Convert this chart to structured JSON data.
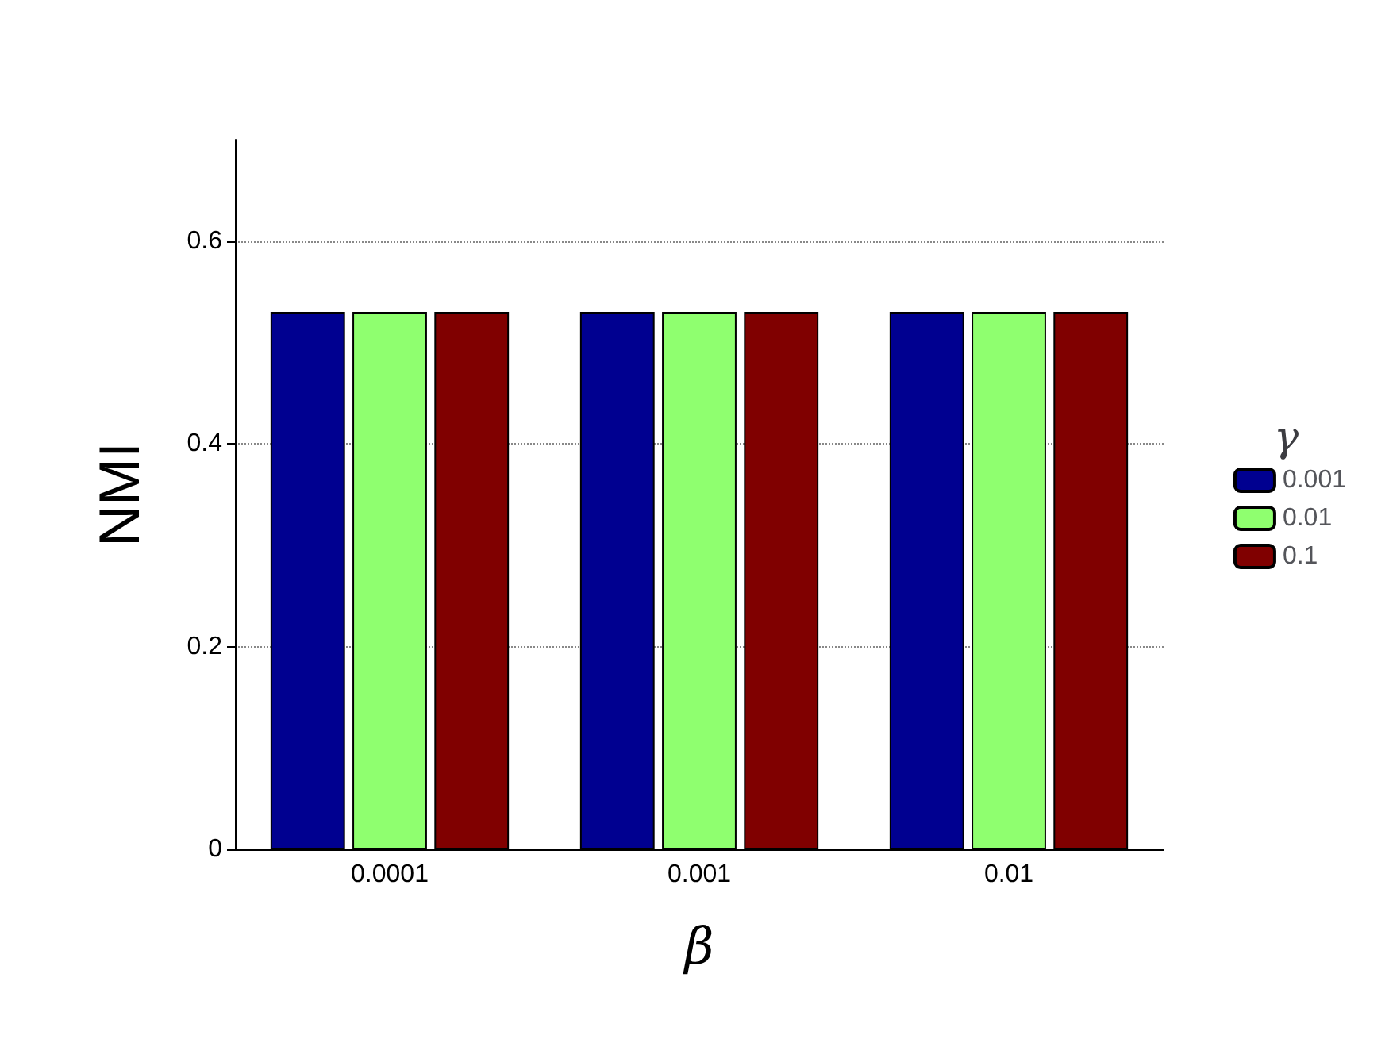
{
  "chart_data": {
    "type": "bar",
    "xlabel": "β",
    "ylabel": "NMI",
    "legend_title": "γ",
    "categories": [
      "0.0001",
      "0.001",
      "0.01"
    ],
    "series": [
      {
        "name": "0.001",
        "color": "#000090",
        "values": [
          0.53,
          0.53,
          0.53
        ]
      },
      {
        "name": "0.01",
        "color": "#8fff6f",
        "values": [
          0.53,
          0.53,
          0.53
        ]
      },
      {
        "name": "0.1",
        "color": "#800000",
        "values": [
          0.53,
          0.53,
          0.53
        ]
      }
    ],
    "ylim": [
      0,
      0.7
    ],
    "yticks": [
      0,
      0.2,
      0.4,
      0.6
    ],
    "grid": "y",
    "legend": "right"
  }
}
